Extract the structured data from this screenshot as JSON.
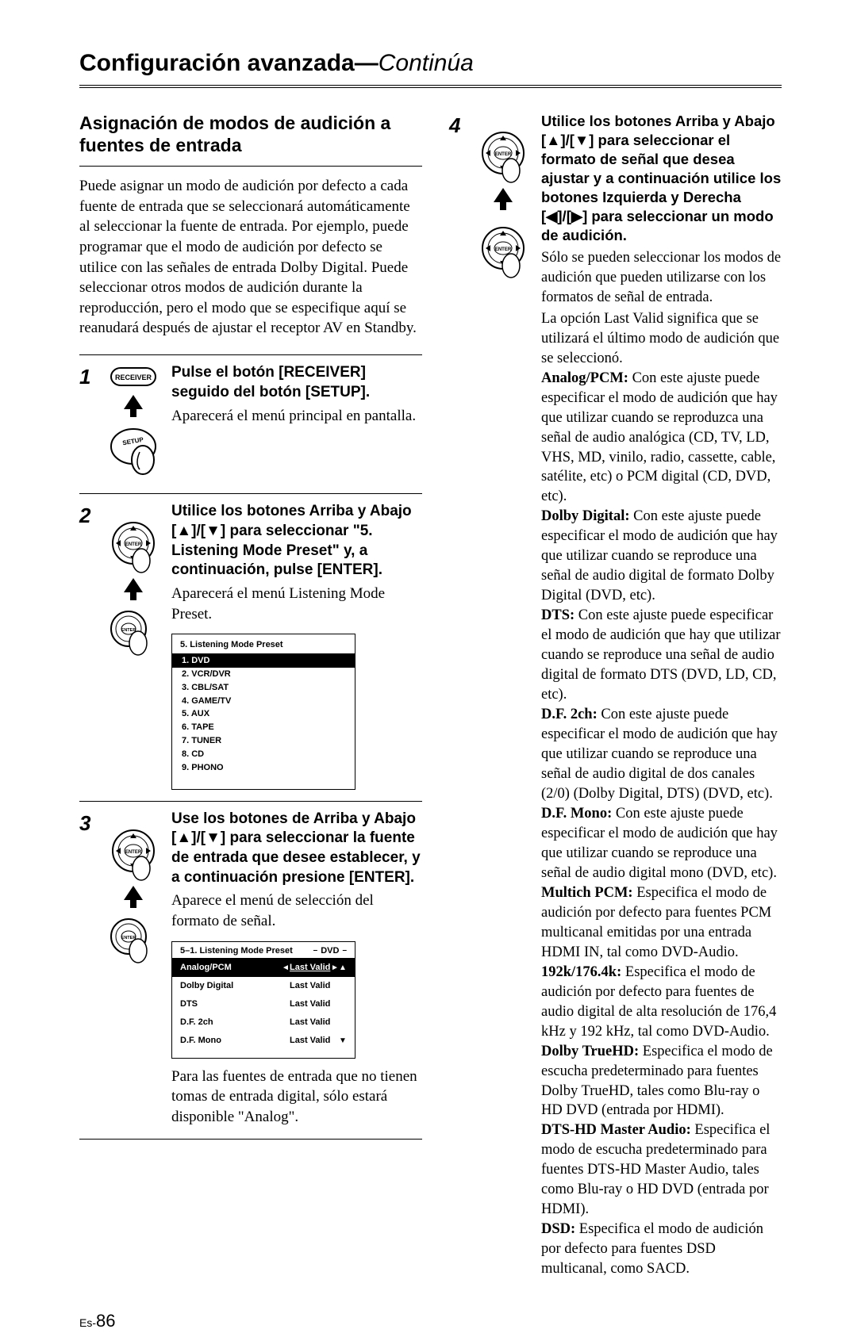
{
  "running_head": {
    "main": "Configuración avanzada",
    "sep": "—",
    "cont": "Continúa"
  },
  "page_num_prefix": "Es-",
  "page_num": "86",
  "section_title": "Asignación de modos de audición a fuentes de entrada",
  "intro": "Puede asignar un modo de audición por defecto a cada fuente de entrada que se seleccionará automáticamente al seleccionar la fuente de entrada. Por ejemplo, puede programar que el modo de audición por defecto se utilice con las señales de entrada Dolby Digital. Puede seleccionar otros modos de audición durante la reproducción, pero el modo que se especifique aquí se reanudará después de ajustar el receptor AV en Standby.",
  "step1": {
    "num": "1",
    "icon_labels": {
      "receiver": "RECEIVER",
      "setup": "SETUP"
    },
    "instr": "Pulse el botón [RECEIVER] seguido del botón [SETUP].",
    "body": "Aparecerá el menú principal en pantalla."
  },
  "step2": {
    "num": "2",
    "icon_labels": {
      "enter": "ENTER"
    },
    "instr": "Utilice los botones Arriba y Abajo [▲]/[▼] para seleccionar \"5. Listening Mode Preset\" y, a continuación, pulse [ENTER].",
    "body": "Aparecerá el menú Listening Mode Preset.",
    "menu_title": "5.  Listening Mode Preset",
    "menu_items": [
      "DVD",
      "VCR/DVR",
      "CBL/SAT",
      "GAME/TV",
      "AUX",
      "TAPE",
      "TUNER",
      "CD",
      "PHONO"
    ]
  },
  "step3": {
    "num": "3",
    "icon_labels": {
      "enter": "ENTER"
    },
    "instr": "Use los botones de Arriba y Abajo [▲]/[▼] para seleccionar la fuente de entrada que desee establecer, y a continuación presione [ENTER].",
    "body": "Aparece el menú de selección del formato de señal.",
    "menu_title": "5–1.  Listening Mode Preset",
    "menu_selector_left": "–",
    "menu_selector_val": "DVD",
    "menu_selector_right": "–",
    "rows": [
      {
        "k": "Analog/PCM",
        "v": "Last Valid",
        "sel": true,
        "arrows": true
      },
      {
        "k": "Dolby Digital",
        "v": "Last Valid"
      },
      {
        "k": "DTS",
        "v": "Last Valid"
      },
      {
        "k": "D.F. 2ch",
        "v": "Last Valid"
      },
      {
        "k": "D.F. Mono",
        "v": "Last Valid"
      }
    ],
    "after": "Para las fuentes de entrada que no tienen tomas de entrada digital, sólo estará disponible \"Analog\"."
  },
  "step4": {
    "num": "4",
    "icon_labels": {
      "enter": "ENTER"
    },
    "instr": "Utilice los botones Arriba y Abajo [▲]/[▼] para seleccionar el formato de señal que desea ajustar y a continuación utilice los botones Izquierda y Derecha [◀]/[▶] para seleccionar un modo de audición.",
    "body1": "Sólo se pueden seleccionar los modos de audición que pueden utilizarse con los formatos de señal de entrada.",
    "body2": "La opción Last Valid significa que se utilizará el último modo de audición que se seleccionó.",
    "specs": [
      {
        "label": "Analog/PCM:",
        "text": " Con este ajuste puede especificar el modo de audición que hay que utilizar cuando se reproduzca una señal de audio analógica (CD, TV, LD, VHS, MD, vinilo, radio, cassette, cable, satélite, etc) o PCM digital (CD, DVD, etc)."
      },
      {
        "label": "Dolby Digital:",
        "text": " Con este ajuste puede especificar el modo de audición que hay que utilizar cuando se reproduce una señal de audio digital de formato Dolby Digital (DVD, etc)."
      },
      {
        "label": "DTS:",
        "text": " Con este ajuste puede especificar el modo de audición que hay que utilizar cuando se reproduce una señal de audio digital de formato DTS (DVD, LD, CD, etc)."
      },
      {
        "label": "D.F. 2ch:",
        "text": " Con este ajuste puede especificar el modo de audición que hay que utilizar cuando se reproduce una señal de audio digital de dos canales (2/0) (Dolby Digital, DTS) (DVD, etc)."
      },
      {
        "label": "D.F. Mono:",
        "text": " Con este ajuste puede especificar el modo de audición que hay que utilizar cuando se reproduce una señal de audio digital mono (DVD, etc)."
      },
      {
        "label": "Multich PCM:",
        "text": " Especifica el modo de audición por defecto para fuentes PCM multicanal emitidas por una entrada HDMI IN, tal como DVD-Audio."
      },
      {
        "label": "192k/176.4k:",
        "text": " Especifica el modo de audición por defecto para fuentes de audio digital de alta resolución de 176,4 kHz y 192 kHz, tal como DVD-Audio."
      },
      {
        "label": "Dolby TrueHD:",
        "text": " Especifica el modo de escucha predeterminado para fuentes Dolby TrueHD, tales como Blu-ray o HD DVD (entrada por HDMI)."
      },
      {
        "label": "DTS-HD Master Audio:",
        "text": " Especifica el modo de escucha predeterminado para fuentes DTS-HD Master Audio, tales como Blu-ray o HD DVD (entrada por HDMI)."
      },
      {
        "label": "DSD:",
        "text": " Especifica el modo de audición por defecto para fuentes DSD multicanal, como SACD."
      }
    ]
  }
}
